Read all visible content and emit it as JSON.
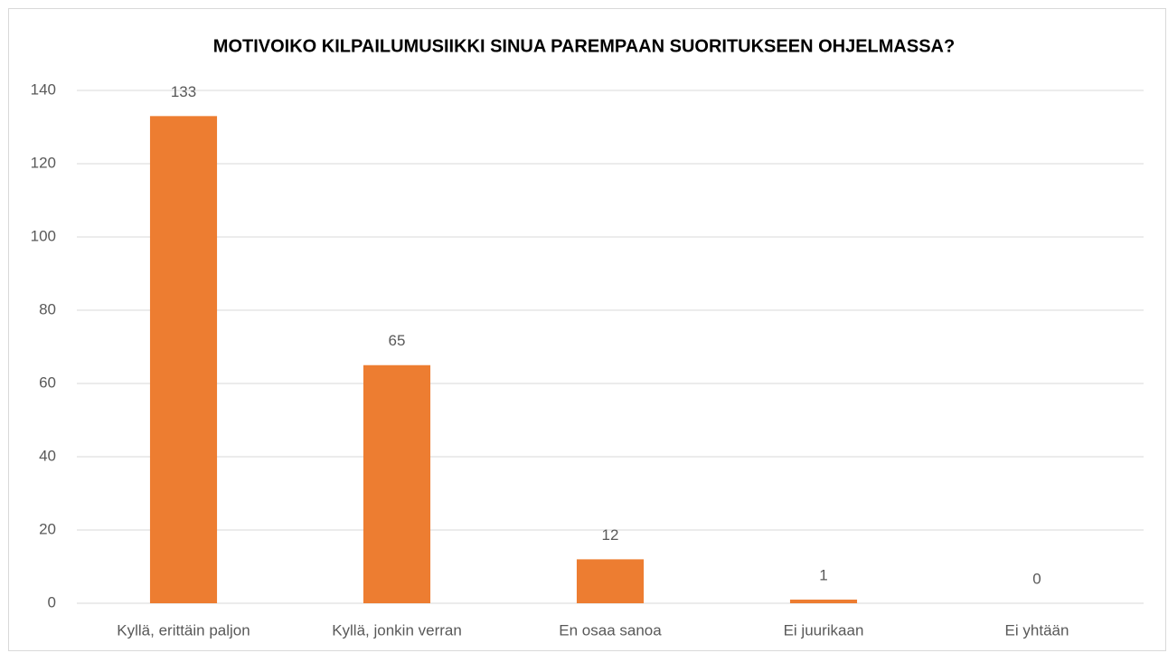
{
  "chart_data": {
    "type": "bar",
    "title": "MOTIVOIKO KILPAILUMUSIIKKI SINUA PAREMPAAN SUORITUKSEEN OHJELMASSA?",
    "categories": [
      "Kyllä, erittäin paljon",
      "Kyllä, jonkin verran",
      "En osaa sanoa",
      "Ei juurikaan",
      "Ei yhtään"
    ],
    "values": [
      133,
      65,
      12,
      1,
      0
    ],
    "color": "#ed7d31",
    "ylim": [
      0,
      140
    ],
    "yticks": [
      0,
      20,
      40,
      60,
      80,
      100,
      120,
      140
    ],
    "grid": true
  }
}
